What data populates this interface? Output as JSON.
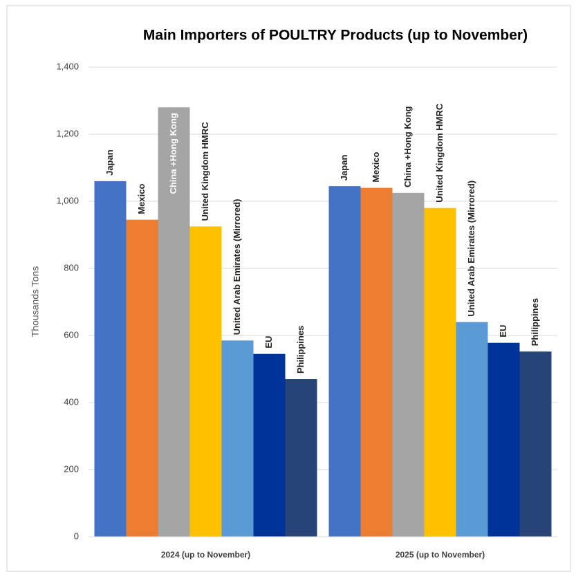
{
  "chart_data": {
    "type": "bar",
    "title": "Main Importers of POULTRY Products (up to November)",
    "y_label": "Thousands Tons",
    "categories": [
      "2024 (up to November)",
      "2025 (up to November)"
    ],
    "series": [
      {
        "name": "Japan",
        "color": "#4472c4",
        "values": [
          1060,
          1045
        ]
      },
      {
        "name": "Mexico",
        "color": "#ed7d31",
        "values": [
          945,
          1040
        ]
      },
      {
        "name": "China +Hong Kong",
        "color": "#a5a5a5",
        "values": [
          1280,
          1025
        ]
      },
      {
        "name": "United Kingdom HMRC",
        "color": "#ffc000",
        "values": [
          925,
          980
        ]
      },
      {
        "name": "United Arab Emirates (Mirrored)",
        "color": "#5b9bd5",
        "values": [
          585,
          640
        ]
      },
      {
        "name": "EU",
        "color": "#003399",
        "values": [
          545,
          578
        ]
      },
      {
        "name": "Philippines",
        "color": "#264478",
        "values": [
          470,
          552
        ]
      }
    ],
    "ylim": [
      0,
      1400
    ],
    "yticks": [
      0,
      200,
      400,
      600,
      800,
      {
        "value": 1000,
        "label": "1,000"
      },
      {
        "value": 1200,
        "label": "1,200"
      },
      {
        "value": 1400,
        "label": "1,400"
      }
    ],
    "grid": true
  }
}
